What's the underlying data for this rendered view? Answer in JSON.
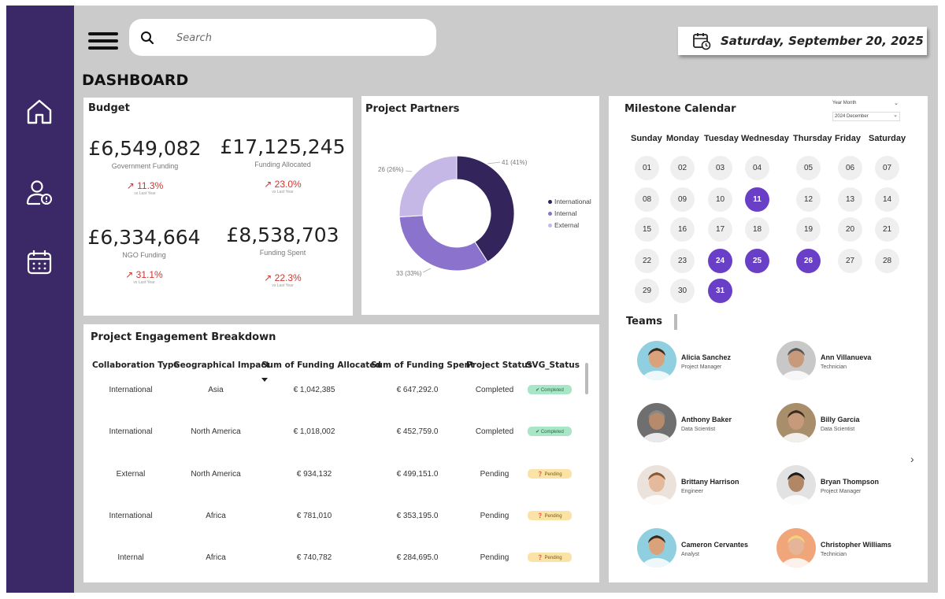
{
  "search": {
    "placeholder": "Search"
  },
  "date": "Saturday, September 20, 2025",
  "page_title": "DASHBOARD",
  "budget": {
    "title": "Budget",
    "kpis": [
      {
        "value": "£6,549,082",
        "label": "Government Funding",
        "change": "↗ 11.3%",
        "sub": "vs Last Year"
      },
      {
        "value": "£17,125,245",
        "label": "Funding Allocated",
        "change": "↗ 23.0%",
        "sub": "vs Last Year"
      },
      {
        "value": "£6,334,664",
        "label": "NGO Funding",
        "change": "↗ 31.1%",
        "sub": "vs Last Year"
      },
      {
        "value": "£8,538,703",
        "label": "Funding Spent",
        "change": "↗ 22.3%",
        "sub": "vs Last Year"
      }
    ]
  },
  "partners": {
    "title": "Project Partners",
    "slices": [
      {
        "name": "International",
        "value": 41,
        "label": "41 (41%)",
        "color": "#33245c"
      },
      {
        "name": "Internal",
        "value": 33,
        "label": "33 (33%)",
        "color": "#8b72cc"
      },
      {
        "name": "External",
        "value": 26,
        "label": "26 (26%)",
        "color": "#c6b8e6"
      }
    ]
  },
  "engagement": {
    "title": "Project Engagement Breakdown",
    "columns": [
      "Collaboration Type",
      "Geographical Impact",
      "Sum of Funding Allocated",
      "Sum of Funding Spent",
      "Project Status",
      "SVG_Status"
    ],
    "rows": [
      {
        "type": "International",
        "geo": "Asia",
        "allocated": "€ 1,042,385",
        "spent": "€ 647,292.0",
        "status": "Completed",
        "svg": "✔ Completed"
      },
      {
        "type": "International",
        "geo": "North America",
        "allocated": "€ 1,018,002",
        "spent": "€ 452,759.0",
        "status": "Completed",
        "svg": "✔ Completed"
      },
      {
        "type": "External",
        "geo": "North America",
        "allocated": "€ 934,132",
        "spent": "€ 499,151.0",
        "status": "Pending",
        "svg": "❓ Pending"
      },
      {
        "type": "International",
        "geo": "Africa",
        "allocated": "€ 781,010",
        "spent": "€ 353,195.0",
        "status": "Pending",
        "svg": "❓ Pending"
      },
      {
        "type": "Internal",
        "geo": "Africa",
        "allocated": "€ 740,782",
        "spent": "€ 284,695.0",
        "status": "Pending",
        "svg": "❓ Pending"
      }
    ]
  },
  "calendar": {
    "title": "Milestone Calendar",
    "slicer_label": "Year Month",
    "slicer_value": "2024 December",
    "day_names": [
      "Sunday",
      "Monday",
      "Tuesday",
      "Wednesday",
      "Thursday",
      "Friday",
      "Saturday"
    ],
    "days": [
      "01",
      "02",
      "03",
      "04",
      "05",
      "06",
      "07",
      "08",
      "09",
      "10",
      "11",
      "12",
      "13",
      "14",
      "15",
      "16",
      "17",
      "18",
      "19",
      "20",
      "21",
      "22",
      "23",
      "24",
      "25",
      "26",
      "27",
      "28",
      "29",
      "30",
      "31"
    ],
    "highlighted": [
      "11",
      "24",
      "25",
      "26",
      "31"
    ]
  },
  "teams": {
    "title": "Teams",
    "members": [
      {
        "name": "Alicia Sanchez",
        "role": "Project Manager"
      },
      {
        "name": "Ann Villanueva",
        "role": "Technician"
      },
      {
        "name": "Anthony Baker",
        "role": "Data Scientist"
      },
      {
        "name": "Billy Garcia",
        "role": "Data Scientist"
      },
      {
        "name": "Brittany Harrison",
        "role": "Engineer"
      },
      {
        "name": "Bryan Thompson",
        "role": "Project Manager"
      },
      {
        "name": "Cameron Cervantes",
        "role": "Analyst"
      },
      {
        "name": "Christopher Williams",
        "role": "Technician"
      }
    ]
  }
}
